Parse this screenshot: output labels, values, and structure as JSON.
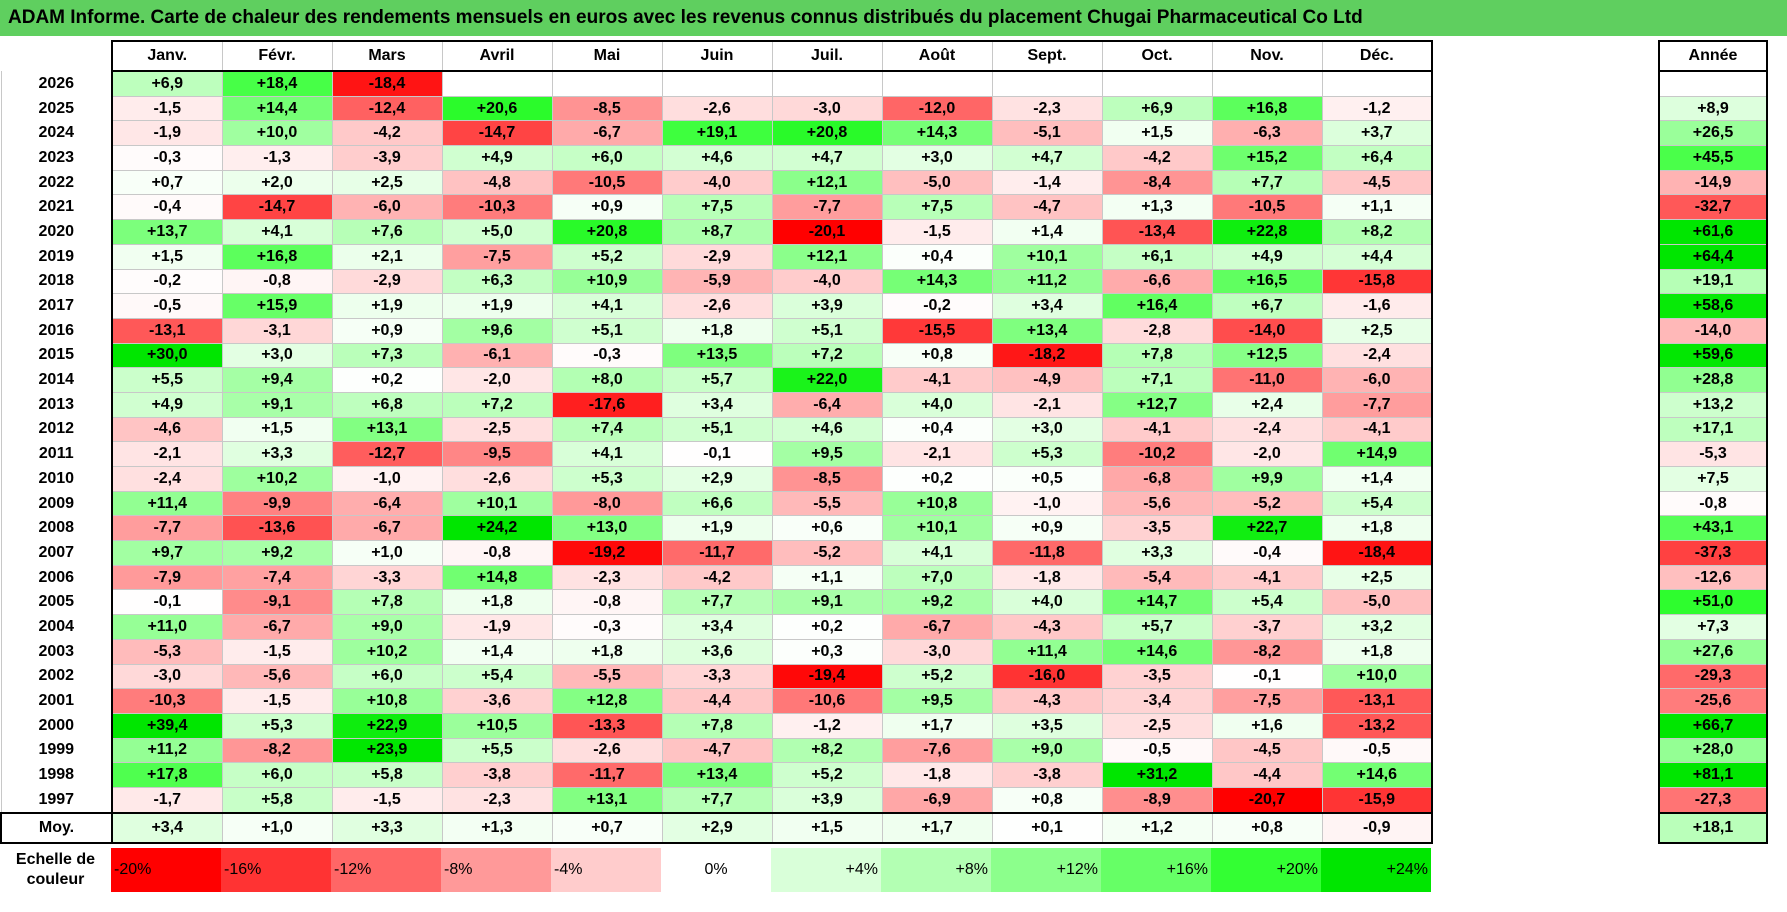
{
  "title": "ADAM Informe. Carte de chaleur des rendements mensuels en euros avec les revenus connus distribués du placement Chugai Pharmaceutical Co Ltd",
  "chart_data": {
    "type": "heatmap",
    "title": "ADAM Informe. Carte de chaleur des rendements mensuels en euros avec les revenus connus distribués du placement Chugai Pharmaceutical Co Ltd",
    "months": [
      "Janv.",
      "Févr.",
      "Mars",
      "Avril",
      "Mai",
      "Juin",
      "Juil.",
      "Août",
      "Sept.",
      "Oct.",
      "Nov.",
      "Déc."
    ],
    "year_header": "Année",
    "rows": [
      {
        "year": "2026",
        "values": [
          "+6,9",
          "+18,4",
          "-18,4",
          "",
          "",
          "",
          "",
          "",
          "",
          "",
          "",
          ""
        ],
        "annual": ""
      },
      {
        "year": "2025",
        "values": [
          "-1,5",
          "+14,4",
          "-12,4",
          "+20,6",
          "-8,5",
          "-2,6",
          "-3,0",
          "-12,0",
          "-2,3",
          "+6,9",
          "+16,8",
          "-1,2"
        ],
        "annual": "+8,9"
      },
      {
        "year": "2024",
        "values": [
          "-1,9",
          "+10,0",
          "-4,2",
          "-14,7",
          "-6,7",
          "+19,1",
          "+20,8",
          "+14,3",
          "-5,1",
          "+1,5",
          "-6,3",
          "+3,7"
        ],
        "annual": "+26,5"
      },
      {
        "year": "2023",
        "values": [
          "-0,3",
          "-1,3",
          "-3,9",
          "+4,9",
          "+6,0",
          "+4,6",
          "+4,7",
          "+3,0",
          "+4,7",
          "-4,2",
          "+15,2",
          "+6,4"
        ],
        "annual": "+45,5"
      },
      {
        "year": "2022",
        "values": [
          "+0,7",
          "+2,0",
          "+2,5",
          "-4,8",
          "-10,5",
          "-4,0",
          "+12,1",
          "-5,0",
          "-1,4",
          "-8,4",
          "+7,7",
          "-4,5"
        ],
        "annual": "-14,9"
      },
      {
        "year": "2021",
        "values": [
          "-0,4",
          "-14,7",
          "-6,0",
          "-10,3",
          "+0,9",
          "+7,5",
          "-7,7",
          "+7,5",
          "-4,7",
          "+1,3",
          "-10,5",
          "+1,1"
        ],
        "annual": "-32,7"
      },
      {
        "year": "2020",
        "values": [
          "+13,7",
          "+4,1",
          "+7,6",
          "+5,0",
          "+20,8",
          "+8,7",
          "-20,1",
          "-1,5",
          "+1,4",
          "-13,4",
          "+22,8",
          "+8,2"
        ],
        "annual": "+61,6"
      },
      {
        "year": "2019",
        "values": [
          "+1,5",
          "+16,8",
          "+2,1",
          "-7,5",
          "+5,2",
          "-2,9",
          "+12,1",
          "+0,4",
          "+10,1",
          "+6,1",
          "+4,9",
          "+4,4"
        ],
        "annual": "+64,4"
      },
      {
        "year": "2018",
        "values": [
          "-0,2",
          "-0,8",
          "-2,9",
          "+6,3",
          "+10,9",
          "-5,9",
          "-4,0",
          "+14,3",
          "+11,2",
          "-6,6",
          "+16,5",
          "-15,8"
        ],
        "annual": "+19,1"
      },
      {
        "year": "2017",
        "values": [
          "-0,5",
          "+15,9",
          "+1,9",
          "+1,9",
          "+4,1",
          "-2,6",
          "+3,9",
          "-0,2",
          "+3,4",
          "+16,4",
          "+6,7",
          "-1,6"
        ],
        "annual": "+58,6"
      },
      {
        "year": "2016",
        "values": [
          "-13,1",
          "-3,1",
          "+0,9",
          "+9,6",
          "+5,1",
          "+1,8",
          "+5,1",
          "-15,5",
          "+13,4",
          "-2,8",
          "-14,0",
          "+2,5"
        ],
        "annual": "-14,0"
      },
      {
        "year": "2015",
        "values": [
          "+30,0",
          "+3,0",
          "+7,3",
          "-6,1",
          "-0,3",
          "+13,5",
          "+7,2",
          "+0,8",
          "-18,2",
          "+7,8",
          "+12,5",
          "-2,4"
        ],
        "annual": "+59,6"
      },
      {
        "year": "2014",
        "values": [
          "+5,5",
          "+9,4",
          "+0,2",
          "-2,0",
          "+8,0",
          "+5,7",
          "+22,0",
          "-4,1",
          "-4,9",
          "+7,1",
          "-11,0",
          "-6,0"
        ],
        "annual": "+28,8"
      },
      {
        "year": "2013",
        "values": [
          "+4,9",
          "+9,1",
          "+6,8",
          "+7,2",
          "-17,6",
          "+3,4",
          "-6,4",
          "+4,0",
          "-2,1",
          "+12,7",
          "+2,4",
          "-7,7"
        ],
        "annual": "+13,2"
      },
      {
        "year": "2012",
        "values": [
          "-4,6",
          "+1,5",
          "+13,1",
          "-2,5",
          "+7,4",
          "+5,1",
          "+4,6",
          "+0,4",
          "+3,0",
          "-4,1",
          "-2,4",
          "-4,1"
        ],
        "annual": "+17,1"
      },
      {
        "year": "2011",
        "values": [
          "-2,1",
          "+3,3",
          "-12,7",
          "-9,5",
          "+4,1",
          "-0,1",
          "+9,5",
          "-2,1",
          "+5,3",
          "-10,2",
          "-2,0",
          "+14,9"
        ],
        "annual": "-5,3"
      },
      {
        "year": "2010",
        "values": [
          "-2,4",
          "+10,2",
          "-1,0",
          "-2,6",
          "+5,3",
          "+2,9",
          "-8,5",
          "+0,2",
          "+0,5",
          "-6,8",
          "+9,9",
          "+1,4"
        ],
        "annual": "+7,5"
      },
      {
        "year": "2009",
        "values": [
          "+11,4",
          "-9,9",
          "-6,4",
          "+10,1",
          "-8,0",
          "+6,6",
          "-5,5",
          "+10,8",
          "-1,0",
          "-5,6",
          "-5,2",
          "+5,4"
        ],
        "annual": "-0,8"
      },
      {
        "year": "2008",
        "values": [
          "-7,7",
          "-13,6",
          "-6,7",
          "+24,2",
          "+13,0",
          "+1,9",
          "+0,6",
          "+10,1",
          "+0,9",
          "-3,5",
          "+22,7",
          "+1,8"
        ],
        "annual": "+43,1"
      },
      {
        "year": "2007",
        "values": [
          "+9,7",
          "+9,2",
          "+1,0",
          "-0,8",
          "-19,2",
          "-11,7",
          "-5,2",
          "+4,1",
          "-11,8",
          "+3,3",
          "-0,4",
          "-18,4"
        ],
        "annual": "-37,3"
      },
      {
        "year": "2006",
        "values": [
          "-7,9",
          "-7,4",
          "-3,3",
          "+14,8",
          "-2,3",
          "-4,2",
          "+1,1",
          "+7,0",
          "-1,8",
          "-5,4",
          "-4,1",
          "+2,5"
        ],
        "annual": "-12,6"
      },
      {
        "year": "2005",
        "values": [
          "-0,1",
          "-9,1",
          "+7,8",
          "+1,8",
          "-0,8",
          "+7,7",
          "+9,1",
          "+9,2",
          "+4,0",
          "+14,7",
          "+5,4",
          "-5,0"
        ],
        "annual": "+51,0"
      },
      {
        "year": "2004",
        "values": [
          "+11,0",
          "-6,7",
          "+9,0",
          "-1,9",
          "-0,3",
          "+3,4",
          "+0,2",
          "-6,7",
          "-4,3",
          "+5,7",
          "-3,7",
          "+3,2"
        ],
        "annual": "+7,3"
      },
      {
        "year": "2003",
        "values": [
          "-5,3",
          "-1,5",
          "+10,2",
          "+1,4",
          "+1,8",
          "+3,6",
          "+0,3",
          "-3,0",
          "+11,4",
          "+14,6",
          "-8,2",
          "+1,8"
        ],
        "annual": "+27,6"
      },
      {
        "year": "2002",
        "values": [
          "-3,0",
          "-5,6",
          "+6,0",
          "+5,4",
          "-5,5",
          "-3,3",
          "-19,4",
          "+5,2",
          "-16,0",
          "-3,5",
          "-0,1",
          "+10,0"
        ],
        "annual": "-29,3"
      },
      {
        "year": "2001",
        "values": [
          "-10,3",
          "-1,5",
          "+10,8",
          "-3,6",
          "+12,8",
          "-4,4",
          "-10,6",
          "+9,5",
          "-4,3",
          "-3,4",
          "-7,5",
          "-13,1"
        ],
        "annual": "-25,6"
      },
      {
        "year": "2000",
        "values": [
          "+39,4",
          "+5,3",
          "+22,9",
          "+10,5",
          "-13,3",
          "+7,8",
          "-1,2",
          "+1,7",
          "+3,5",
          "-2,5",
          "+1,6",
          "-13,2"
        ],
        "annual": "+66,7"
      },
      {
        "year": "1999",
        "values": [
          "+11,2",
          "-8,2",
          "+23,9",
          "+5,5",
          "-2,6",
          "-4,7",
          "+8,2",
          "-7,6",
          "+9,0",
          "-0,5",
          "-4,5",
          "-0,5"
        ],
        "annual": "+28,0"
      },
      {
        "year": "1998",
        "values": [
          "+17,8",
          "+6,0",
          "+5,8",
          "-3,8",
          "-11,7",
          "+13,4",
          "+5,2",
          "-1,8",
          "-3,8",
          "+31,2",
          "-4,4",
          "+14,6"
        ],
        "annual": "+81,1"
      },
      {
        "year": "1997",
        "values": [
          "-1,7",
          "+5,8",
          "-1,5",
          "-2,3",
          "+13,1",
          "+7,7",
          "+3,9",
          "-6,9",
          "+0,8",
          "-8,9",
          "-20,7",
          "-15,9"
        ],
        "annual": "-27,3"
      }
    ],
    "average": {
      "label": "Moy.",
      "values": [
        "+3,4",
        "+1,0",
        "+3,3",
        "+1,3",
        "+0,7",
        "+2,9",
        "+1,5",
        "+1,7",
        "+0,1",
        "+1,2",
        "+0,8",
        "-0,9"
      ],
      "annual": "+18,1"
    },
    "color_scale": {
      "label": "Echelle de couleur",
      "stops": [
        "-20%",
        "-16%",
        "-12%",
        "-8%",
        "-4%",
        "0%",
        "+4%",
        "+8%",
        "+12%",
        "+16%",
        "+20%",
        "+24%"
      ],
      "stop_values": [
        -20,
        -16,
        -12,
        -8,
        -4,
        0,
        4,
        8,
        12,
        16,
        20,
        24
      ],
      "colors": [
        "#ff0000",
        "#ff3333",
        "#ff6666",
        "#ff9999",
        "#ffcccc",
        "#ffffff",
        "#d9ffd9",
        "#b3ffb3",
        "#8cff8c",
        "#66ff66",
        "#33ff33",
        "#00e600"
      ]
    }
  }
}
